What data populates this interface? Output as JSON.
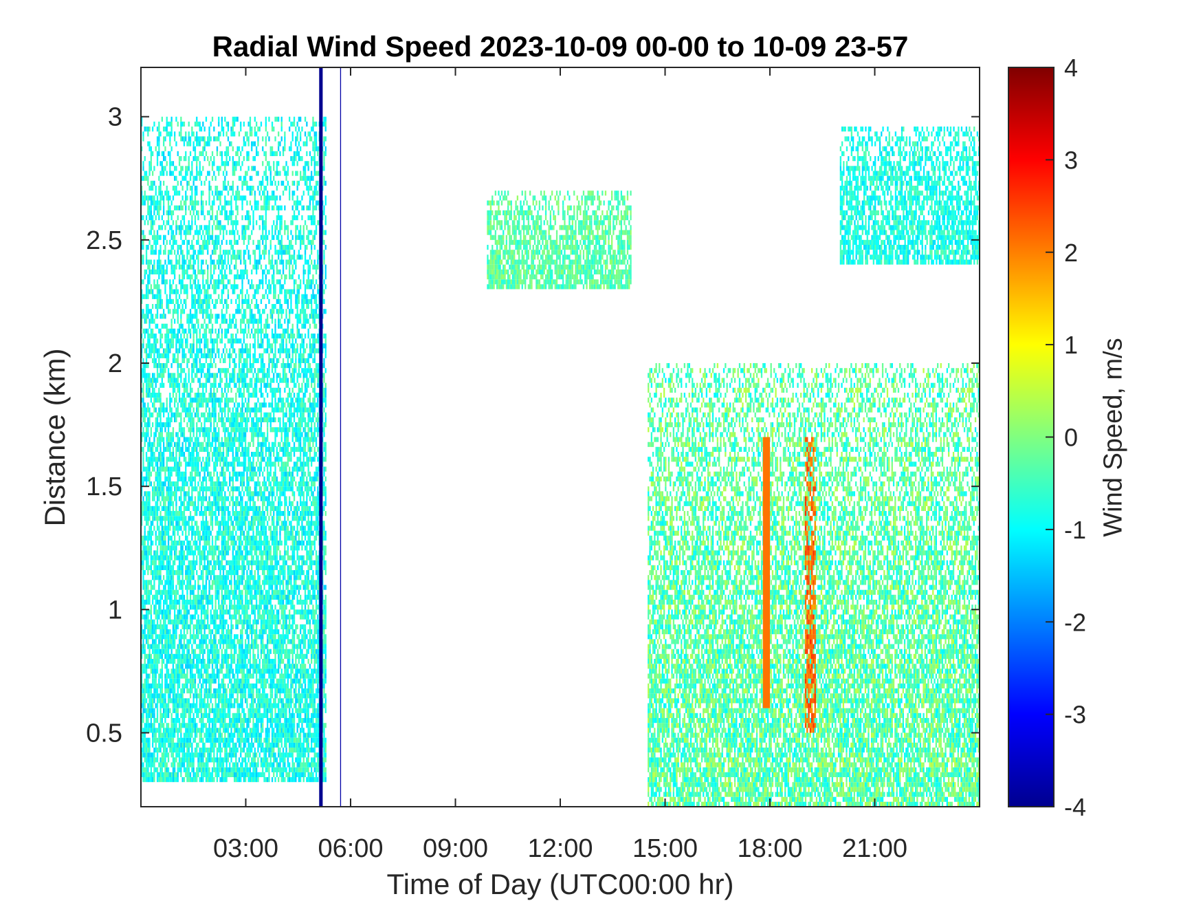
{
  "chart_data": {
    "type": "heatmap",
    "title": "Radial Wind Speed 2023-10-09 00-00 to 10-09 23-57",
    "xlabel": "Time of Day (UTC00:00 hr)",
    "ylabel": "Distance (km)",
    "colorbar_label": "Wind Speed, m/s",
    "colormap": "jet",
    "xlim_hours": [
      0,
      24
    ],
    "ylim_km": [
      0.2,
      3.2
    ],
    "clim": [
      -4,
      4
    ],
    "x_ticks": [
      {
        "value": 3,
        "label": "03:00"
      },
      {
        "value": 6,
        "label": "06:00"
      },
      {
        "value": 9,
        "label": "09:00"
      },
      {
        "value": 12,
        "label": "12:00"
      },
      {
        "value": 15,
        "label": "15:00"
      },
      {
        "value": 18,
        "label": "18:00"
      },
      {
        "value": 21,
        "label": "21:00"
      }
    ],
    "y_ticks": [
      {
        "value": 0.5,
        "label": "0.5"
      },
      {
        "value": 1,
        "label": "1"
      },
      {
        "value": 1.5,
        "label": "1.5"
      },
      {
        "value": 2,
        "label": "2"
      },
      {
        "value": 2.5,
        "label": "2.5"
      },
      {
        "value": 3,
        "label": "3"
      }
    ],
    "colorbar_ticks": [
      {
        "value": 4,
        "label": "4"
      },
      {
        "value": 3,
        "label": "3"
      },
      {
        "value": 2,
        "label": "2"
      },
      {
        "value": 1,
        "label": "1"
      },
      {
        "value": 0,
        "label": "0"
      },
      {
        "value": -1,
        "label": "-1"
      },
      {
        "value": -2,
        "label": "-2"
      },
      {
        "value": -3,
        "label": "-3"
      },
      {
        "value": -4,
        "label": "-4"
      }
    ],
    "grid": false,
    "regions": [
      {
        "t_start": 0.0,
        "t_end": 5.3,
        "d_low": 0.3,
        "d_high": 3.0,
        "mean_speed": -0.8,
        "spread": 0.6
      },
      {
        "t_start": 5.1,
        "t_end": 5.2,
        "d_low": 0.2,
        "d_high": 3.2,
        "mean_speed": -4.0,
        "spread": 0.0
      },
      {
        "t_start": 5.7,
        "t_end": 5.72,
        "d_low": 0.2,
        "d_high": 3.2,
        "mean_speed": -3.8,
        "spread": 0.0
      },
      {
        "t_start": 9.9,
        "t_end": 14.0,
        "d_low": 2.3,
        "d_high": 2.7,
        "mean_speed": -0.3,
        "spread": 0.5
      },
      {
        "t_start": 14.5,
        "t_end": 24.0,
        "d_low": 0.2,
        "d_high": 2.0,
        "mean_speed": -0.3,
        "spread": 0.8
      },
      {
        "t_start": 17.8,
        "t_end": 18.0,
        "d_low": 0.6,
        "d_high": 1.7,
        "mean_speed": 2.5,
        "spread": 0.5
      },
      {
        "t_start": 19.0,
        "t_end": 19.3,
        "d_low": 0.5,
        "d_high": 1.7,
        "mean_speed": 2.2,
        "spread": 0.5
      },
      {
        "t_start": 20.0,
        "t_end": 24.0,
        "d_low": 2.4,
        "d_high": 2.95,
        "mean_speed": -0.8,
        "spread": 0.5
      }
    ]
  }
}
